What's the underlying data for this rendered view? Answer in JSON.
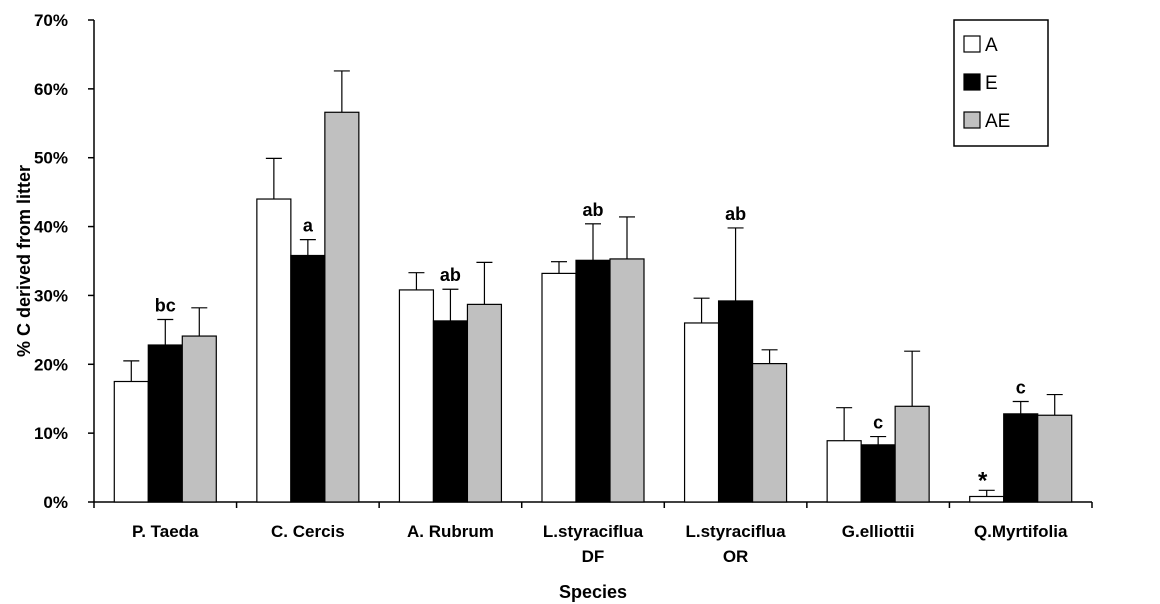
{
  "chart_data": {
    "type": "bar",
    "title": "",
    "xlabel": "Species",
    "ylabel": "% C derived from litter",
    "ylim": [
      0,
      70
    ],
    "y_ticks": [
      "0%",
      "10%",
      "20%",
      "30%",
      "40%",
      "50%",
      "60%",
      "70%"
    ],
    "grid": false,
    "legend_position": "top-right",
    "categories": [
      [
        "P. Taeda"
      ],
      [
        "C. Cercis"
      ],
      [
        "A. Rubrum"
      ],
      [
        "L.styraciflua",
        "DF"
      ],
      [
        "L.styraciflua",
        "OR"
      ],
      [
        "G.elliottii"
      ],
      [
        "Q.Myrtifolia"
      ]
    ],
    "series": [
      {
        "name": "A",
        "color": "#ffffff",
        "values": [
          17.5,
          44.0,
          30.8,
          33.2,
          26.0,
          8.9,
          0.8
        ],
        "errors": [
          3.0,
          5.9,
          2.5,
          1.7,
          3.6,
          4.8,
          0.9
        ]
      },
      {
        "name": "E",
        "color": "#000000",
        "values": [
          22.8,
          35.8,
          26.3,
          35.1,
          29.2,
          8.3,
          12.8
        ],
        "errors": [
          3.7,
          2.3,
          4.6,
          5.3,
          10.6,
          1.2,
          1.8
        ]
      },
      {
        "name": "AE",
        "color": "#c0c0c0",
        "values": [
          24.1,
          56.6,
          28.7,
          35.3,
          20.1,
          13.9,
          12.6
        ],
        "errors": [
          4.1,
          6.0,
          6.1,
          6.1,
          2.0,
          8.0,
          3.0
        ]
      }
    ],
    "annotations": [
      {
        "text": "bc",
        "category": 0
      },
      {
        "text": "a",
        "category": 1
      },
      {
        "text": "ab",
        "category": 2
      },
      {
        "text": "ab",
        "category": 3
      },
      {
        "text": "ab",
        "category": 4
      },
      {
        "text": "c",
        "category": 5
      },
      {
        "text": "c",
        "category": 6
      },
      {
        "text": "*",
        "category": 6,
        "series": 0
      }
    ]
  }
}
